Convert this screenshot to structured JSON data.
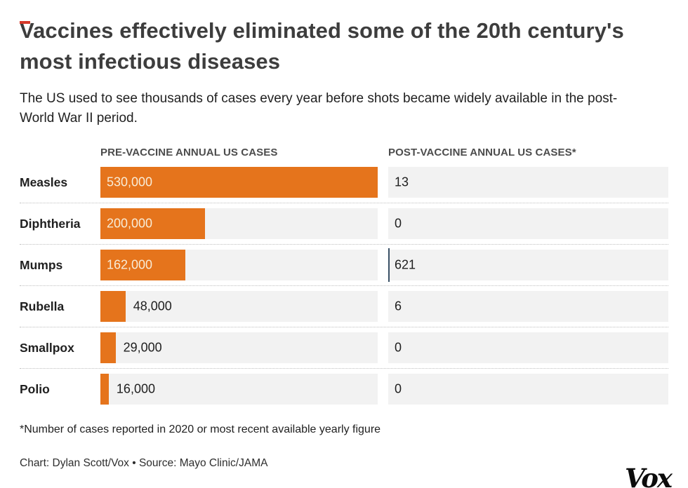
{
  "title": "Vaccines effectively eliminated some of the 20th century's most infectious diseases",
  "subtitle": "The US used to see thousands of cases every year before shots became widely available in the post-World War II period.",
  "chart_data": {
    "type": "bar",
    "title": "Vaccines effectively eliminated some of the 20th century's most infectious diseases",
    "columns": [
      "PRE-VACCINE ANNUAL US CASES",
      "POST-VACCINE ANNUAL US CASES*"
    ],
    "categories": [
      "Measles",
      "Diphtheria",
      "Mumps",
      "Rubella",
      "Smallpox",
      "Polio"
    ],
    "series": [
      {
        "name": "Pre-vaccine annual US cases",
        "values": [
          530000,
          200000,
          162000,
          48000,
          29000,
          16000
        ],
        "labels": [
          "530,000",
          "200,000",
          "162,000",
          "48,000",
          "29,000",
          "16,000"
        ]
      },
      {
        "name": "Post-vaccine annual US cases",
        "values": [
          13,
          0,
          621,
          6,
          0,
          0
        ],
        "labels": [
          "13",
          "0",
          "621",
          "6",
          "0",
          "0"
        ]
      }
    ],
    "xmax": 530000,
    "grid": false,
    "legend_position": "column-headers"
  },
  "footnote": "*Number of cases reported in 2020 or most recent available yearly figure",
  "credit": "Chart: Dylan Scott/Vox • Source: Mayo Clinic/JAMA",
  "logo": "Vox",
  "colors": {
    "bar": "#e5741c",
    "track": "#f2f2f2",
    "bar-label-inside": "#f8ecd7",
    "post-tick": "#3a5166",
    "accent-dash": "#d6392a",
    "bottom-bar": "#20395c",
    "divider": "#bfbfbf",
    "title": "#3d3d3d",
    "text": "#1f1f1f",
    "header": "#4c4c4c"
  }
}
